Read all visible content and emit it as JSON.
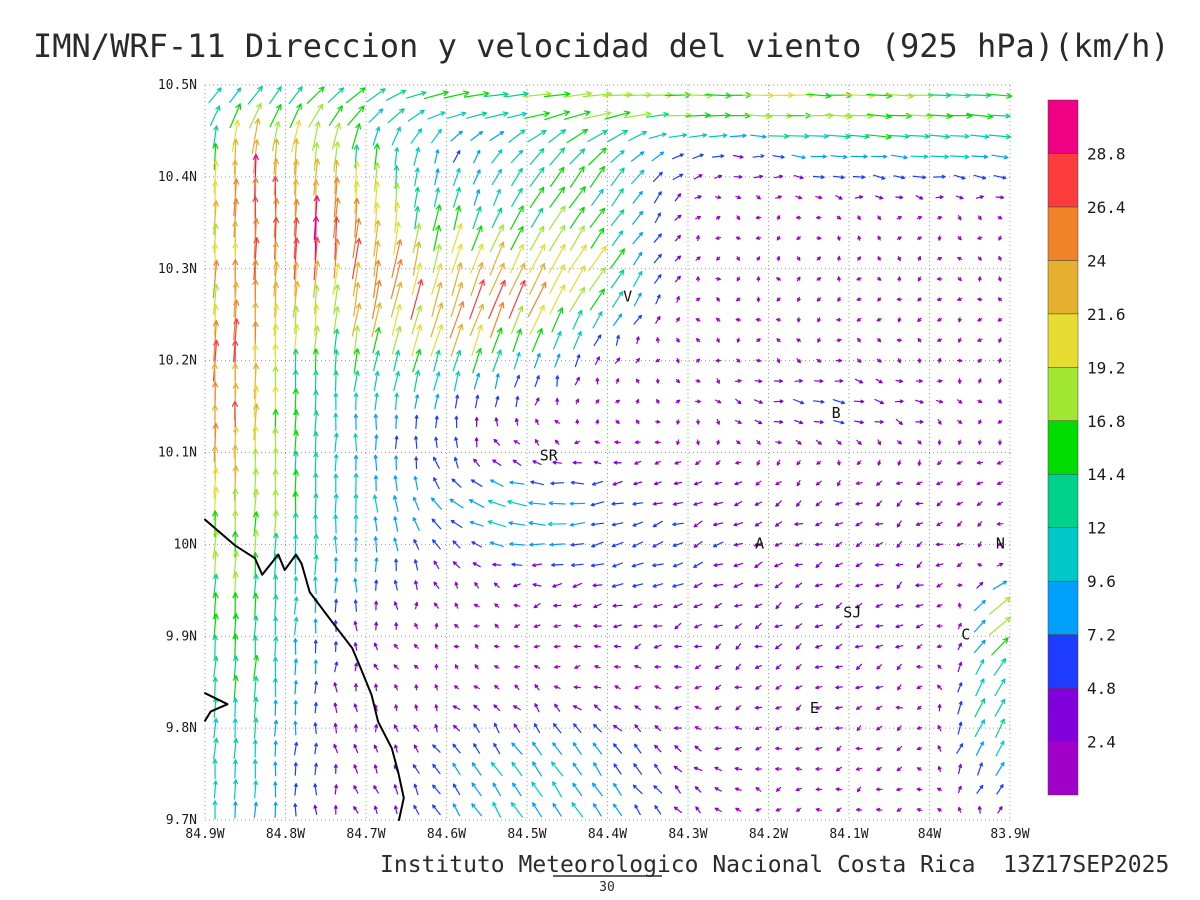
{
  "title": "IMN/WRF-11 Direccion y velocidad del viento (925 hPa)(km/h)",
  "caption": "Instituto Meteorologico Nacional Costa Rica  13Z17SEP2025",
  "reference_vector": {
    "label": "30",
    "value_kmh": 30
  },
  "axes": {
    "y_tick_labels": [
      "10.5N",
      "10.4N",
      "10.3N",
      "10.2N",
      "10.1N",
      "10N",
      "9.9N",
      "9.8N",
      "9.7N"
    ],
    "x_tick_labels": [
      "84.9W",
      "84.8W",
      "84.7W",
      "84.6W",
      "84.5W",
      "84.4W",
      "84.3W",
      "84.2W",
      "84.1W",
      "84W",
      "83.9W"
    ]
  },
  "colorbar": {
    "tick_labels": [
      "2.4",
      "4.8",
      "7.2",
      "9.6",
      "12",
      "14.4",
      "16.8",
      "19.2",
      "21.6",
      "24",
      "26.4",
      "28.8"
    ],
    "levels_kmh": [
      2.4,
      4.8,
      7.2,
      9.6,
      12,
      14.4,
      16.8,
      19.2,
      21.6,
      24,
      26.4,
      28.8
    ],
    "colors": [
      "#a000c8",
      "#8200dc",
      "#1e3cff",
      "#00a0ff",
      "#00c8c8",
      "#00d28c",
      "#00dc00",
      "#a0e632",
      "#e6dc32",
      "#e6af2d",
      "#f08228",
      "#fa3c3c",
      "#f00082"
    ]
  },
  "stations": [
    {
      "label": "V",
      "lon_w": 84.375,
      "lat_n": 10.27
    },
    {
      "label": "B",
      "lon_w": 84.116,
      "lat_n": 10.143
    },
    {
      "label": "SR",
      "lon_w": 84.473,
      "lat_n": 10.097
    },
    {
      "label": "A",
      "lon_w": 84.211,
      "lat_n": 10.001
    },
    {
      "label": "N",
      "lon_w": 83.912,
      "lat_n": 10.001
    },
    {
      "label": "SJ",
      "lon_w": 84.096,
      "lat_n": 9.926
    },
    {
      "label": "C",
      "lon_w": 83.955,
      "lat_n": 9.902
    },
    {
      "label": "E",
      "lon_w": 84.143,
      "lat_n": 9.822
    }
  ],
  "coastline": [
    [
      [
        84.9,
        10.027
      ],
      [
        84.863,
        9.999
      ],
      [
        84.838,
        9.985
      ],
      [
        84.829,
        9.967
      ],
      [
        84.809,
        9.989
      ],
      [
        84.801,
        9.972
      ],
      [
        84.787,
        9.989
      ],
      [
        84.78,
        9.979
      ],
      [
        84.77,
        9.948
      ],
      [
        84.739,
        9.912
      ],
      [
        84.717,
        9.887
      ],
      [
        84.707,
        9.866
      ],
      [
        84.693,
        9.836
      ],
      [
        84.685,
        9.807
      ],
      [
        84.668,
        9.778
      ],
      [
        84.66,
        9.752
      ],
      [
        84.653,
        9.724
      ],
      [
        84.659,
        9.7
      ]
    ],
    [
      [
        84.9,
        9.838
      ],
      [
        84.872,
        9.826
      ],
      [
        84.893,
        9.818
      ],
      [
        84.9,
        9.808
      ]
    ]
  ],
  "chart_data": {
    "type": "quiver",
    "model": "IMN/WRF-11",
    "variable": "Direccion y velocidad del viento",
    "level": "925 hPa",
    "units": "km/h",
    "valid_time": "13Z17SEP2025",
    "institution": "Instituto Meteorologico Nacional Costa Rica",
    "lon_w_range": [
      84.9,
      83.9
    ],
    "lat_n_range": [
      9.7,
      10.5
    ],
    "grid": {
      "nx": 40,
      "ny": 36
    },
    "speed_levels_kmh": [
      2.4,
      4.8,
      7.2,
      9.6,
      12,
      14.4,
      16.8,
      19.2,
      21.6,
      24,
      26.4,
      28.8
    ],
    "reference_vector_kmh": 30,
    "legend_position": "right",
    "grid_lines": "dotted every 0.1 degree",
    "flow_features": [
      {
        "name": "nw-southerly-jet",
        "lon_w": 84.78,
        "lat_n": 10.36,
        "sigma_lon": 0.16,
        "sigma_lat": 0.14,
        "u_kmh": 1,
        "v_kmh": 23
      },
      {
        "name": "nw-jet-core",
        "lon_w": 84.84,
        "lat_n": 10.41,
        "sigma_lon": 0.06,
        "sigma_lat": 0.06,
        "u_kmh": 0,
        "v_kmh": 7
      },
      {
        "name": "mid-jet-band",
        "lon_w": 84.58,
        "lat_n": 10.26,
        "sigma_lon": 0.14,
        "sigma_lat": 0.09,
        "u_kmh": 7,
        "v_kmh": 19
      },
      {
        "name": "jet-ne-extension",
        "lon_w": 84.44,
        "lat_n": 10.3,
        "sigma_lon": 0.1,
        "sigma_lat": 0.07,
        "u_kmh": 9,
        "v_kmh": 12
      },
      {
        "name": "top-edge-westerlies",
        "lon_w": 84.35,
        "lat_n": 10.49,
        "sigma_lon": 0.55,
        "sigma_lat": 0.045,
        "u_kmh": 16,
        "v_kmh": 0
      },
      {
        "name": "ne-top-westerlies",
        "lon_w": 84.0,
        "lat_n": 10.44,
        "sigma_lon": 0.25,
        "sigma_lat": 0.06,
        "u_kmh": 10,
        "v_kmh": -1
      },
      {
        "name": "upper-mid-ne-flow",
        "lon_w": 84.44,
        "lat_n": 10.41,
        "sigma_lon": 0.12,
        "sigma_lat": 0.06,
        "u_kmh": 7,
        "v_kmh": 10
      },
      {
        "name": "west-edge-northerly",
        "lon_w": 84.88,
        "lat_n": 10.17,
        "sigma_lon": 0.08,
        "sigma_lat": 0.12,
        "u_kmh": 0,
        "v_kmh": 14
      },
      {
        "name": "sw-coastal-northerly",
        "lon_w": 84.88,
        "lat_n": 9.92,
        "sigma_lon": 0.13,
        "sigma_lat": 0.35,
        "u_kmh": 1,
        "v_kmh": 14
      },
      {
        "name": "west-central-upflow",
        "lon_w": 84.7,
        "lat_n": 10.05,
        "sigma_lon": 0.15,
        "sigma_lat": 0.12,
        "u_kmh": 0,
        "v_kmh": 8
      },
      {
        "name": "south-center-northwest",
        "lon_w": 84.48,
        "lat_n": 9.73,
        "sigma_lon": 0.18,
        "sigma_lat": 0.09,
        "u_kmh": -5,
        "v_kmh": 9
      },
      {
        "name": "central-westward-band",
        "lon_w": 84.52,
        "lat_n": 10.04,
        "sigma_lon": 0.1,
        "sigma_lat": 0.05,
        "u_kmh": -9,
        "v_kmh": 1
      },
      {
        "name": "central-weak-southwest",
        "lon_w": 84.38,
        "lat_n": 9.99,
        "sigma_lon": 0.15,
        "sigma_lat": 0.08,
        "u_kmh": -4,
        "v_kmh": -1
      },
      {
        "name": "se-weak-drift",
        "lon_w": 84.1,
        "lat_n": 9.95,
        "sigma_lon": 0.4,
        "sigma_lat": 0.3,
        "u_kmh": -2.5,
        "v_kmh": -1.5
      },
      {
        "name": "easterly-band-near-B",
        "lon_w": 84.12,
        "lat_n": 10.15,
        "sigma_lon": 0.16,
        "sigma_lat": 0.05,
        "u_kmh": 7,
        "v_kmh": 0
      },
      {
        "name": "east-edge-upflow",
        "lon_w": 83.92,
        "lat_n": 9.81,
        "sigma_lon": 0.06,
        "sigma_lat": 0.09,
        "u_kmh": 7,
        "v_kmh": 12
      },
      {
        "name": "east-edge-strong-ne",
        "lon_w": 83.9,
        "lat_n": 9.92,
        "sigma_lon": 0.045,
        "sigma_lat": 0.05,
        "u_kmh": 15,
        "v_kmh": 10
      }
    ]
  }
}
